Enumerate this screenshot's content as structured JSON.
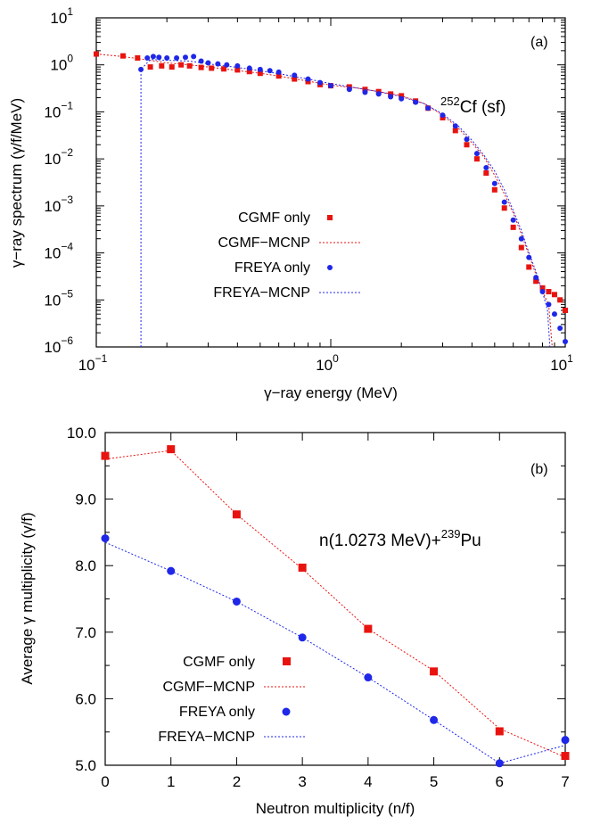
{
  "chart_data": [
    {
      "type": "scatter",
      "panel_label": "(a)",
      "annotation": "Cf (sf)",
      "annotation_sup": "252",
      "xlabel": "γ−ray energy (MeV)",
      "ylabel": "γ−ray spectrum (γ/f/MeV)",
      "xscale": "log",
      "yscale": "log",
      "xlim": [
        0.1,
        10
      ],
      "ylim": [
        1e-06,
        10
      ],
      "xticks": [
        {
          "base": "10",
          "exp": "−1",
          "value": 0.1
        },
        {
          "base": "10",
          "exp": "0",
          "value": 1
        },
        {
          "base": "10",
          "exp": "1",
          "value": 10
        }
      ],
      "yticks": [
        {
          "base": "10",
          "exp": "−6",
          "value": 1e-06
        },
        {
          "base": "10",
          "exp": "−5",
          "value": 1e-05
        },
        {
          "base": "10",
          "exp": "−4",
          "value": 0.0001
        },
        {
          "base": "10",
          "exp": "−3",
          "value": 0.001
        },
        {
          "base": "10",
          "exp": "−2",
          "value": 0.01
        },
        {
          "base": "10",
          "exp": "−1",
          "value": 0.1
        },
        {
          "base": "10",
          "exp": "0",
          "value": 1
        },
        {
          "base": "10",
          "exp": "1",
          "value": 10
        }
      ],
      "legend": {
        "position": "left-center"
      },
      "series": [
        {
          "name": "CGMF only",
          "style": "square-markers",
          "color": "#e8130f",
          "x": [
            0.1,
            0.13,
            0.15,
            0.17,
            0.19,
            0.21,
            0.23,
            0.25,
            0.28,
            0.31,
            0.35,
            0.4,
            0.45,
            0.5,
            0.6,
            0.7,
            0.8,
            0.9,
            1.0,
            1.2,
            1.4,
            1.6,
            1.8,
            2.0,
            2.3,
            2.6,
            3.0,
            3.4,
            3.8,
            4.2,
            4.6,
            5.0,
            5.5,
            6.0,
            6.5,
            7.0,
            7.5,
            8.0,
            8.5,
            9.0,
            9.5,
            10.0
          ],
          "y": [
            1.7,
            1.55,
            1.4,
            0.9,
            0.95,
            0.9,
            1.0,
            0.95,
            0.88,
            0.85,
            0.82,
            0.78,
            0.72,
            0.66,
            0.58,
            0.5,
            0.44,
            0.38,
            0.36,
            0.34,
            0.3,
            0.27,
            0.24,
            0.22,
            0.17,
            0.12,
            0.075,
            0.04,
            0.02,
            0.01,
            0.005,
            0.0022,
            0.0009,
            0.00035,
            0.00013,
            5e-05,
            2.5e-05,
            1.8e-05,
            1.5e-05,
            1.3e-05,
            1e-05,
            6e-06
          ]
        },
        {
          "name": "CGMF−MCNP",
          "style": "dotted-line",
          "color": "#e8130f",
          "x": [
            0.1,
            0.13,
            0.16,
            0.2,
            0.25,
            0.3,
            0.4,
            0.5,
            0.6,
            0.8,
            1.0,
            1.3,
            1.6,
            2.0,
            2.5,
            3.0,
            3.5,
            4.0,
            4.5,
            5.0,
            5.5,
            6.0,
            6.5,
            7.0,
            7.5,
            8.0,
            8.5,
            8.8
          ],
          "y": [
            1.7,
            1.5,
            1.3,
            1.1,
            1.0,
            0.9,
            0.76,
            0.66,
            0.58,
            0.45,
            0.37,
            0.32,
            0.27,
            0.22,
            0.15,
            0.085,
            0.045,
            0.022,
            0.011,
            0.0045,
            0.0018,
            0.0007,
            0.00025,
            9e-05,
            3.5e-05,
            1.5e-05,
            8e-06,
            1e-06
          ]
        },
        {
          "name": "FREYA only",
          "style": "circle-markers",
          "color": "#1f27e8",
          "x": [
            0.155,
            0.165,
            0.175,
            0.185,
            0.2,
            0.22,
            0.24,
            0.26,
            0.28,
            0.3,
            0.33,
            0.36,
            0.4,
            0.45,
            0.5,
            0.55,
            0.6,
            0.7,
            0.8,
            0.9,
            1.0,
            1.2,
            1.4,
            1.6,
            1.8,
            2.0,
            2.3,
            2.6,
            3.0,
            3.4,
            3.8,
            4.2,
            4.6,
            5.0,
            5.5,
            6.0,
            6.5,
            7.0,
            7.5,
            8.0,
            8.5,
            9.0,
            9.5,
            10.0
          ],
          "y": [
            0.8,
            1.4,
            1.5,
            1.45,
            1.4,
            1.4,
            1.45,
            1.5,
            1.2,
            1.1,
            1.05,
            1.0,
            0.95,
            0.85,
            0.8,
            0.75,
            0.7,
            0.6,
            0.5,
            0.42,
            0.36,
            0.3,
            0.26,
            0.24,
            0.21,
            0.19,
            0.16,
            0.12,
            0.085,
            0.05,
            0.026,
            0.013,
            0.0065,
            0.003,
            0.0012,
            0.0005,
            0.0002,
            8e-05,
            3e-05,
            1.5e-05,
            8e-06,
            5e-06,
            2.5e-06,
            1.3e-06
          ]
        },
        {
          "name": "FREYA−MCNP",
          "style": "dotted-line",
          "color": "#1f27e8",
          "x": [
            0.155,
            0.155,
            0.17,
            0.2,
            0.25,
            0.3,
            0.4,
            0.5,
            0.6,
            0.8,
            1.0,
            1.3,
            1.6,
            2.0,
            2.5,
            3.0,
            3.5,
            4.0,
            4.5,
            5.0,
            5.5,
            6.0,
            6.5,
            7.0,
            7.5,
            8.0,
            8.4,
            8.6
          ],
          "y": [
            1e-06,
            0.8,
            1.3,
            1.25,
            1.2,
            1.05,
            0.88,
            0.75,
            0.65,
            0.5,
            0.4,
            0.32,
            0.27,
            0.21,
            0.15,
            0.09,
            0.05,
            0.025,
            0.012,
            0.0055,
            0.0022,
            0.0008,
            0.0003,
            0.0001,
            4e-05,
            1.5e-05,
            6e-06,
            1e-06
          ]
        }
      ]
    },
    {
      "type": "line",
      "panel_label": "(b)",
      "annotation": "n(1.0273 MeV)+",
      "annotation_sup": "239",
      "annotation_tail": "Pu",
      "xlabel": "Neutron multiplicity (n/f)",
      "ylabel": "Average γ multiplicity (γ/f)",
      "xlim": [
        0,
        7
      ],
      "ylim": [
        5.0,
        10.0
      ],
      "xticks": [
        "0",
        "1",
        "2",
        "3",
        "4",
        "5",
        "6",
        "7"
      ],
      "yticks": [
        "5.0",
        "6.0",
        "7.0",
        "8.0",
        "9.0",
        "10.0"
      ],
      "legend": {
        "position": "bottom-left"
      },
      "series": [
        {
          "name": "CGMF only",
          "style": "square-markers",
          "color": "#e8130f",
          "x": [
            0,
            1,
            2,
            3,
            4,
            5,
            6,
            7
          ],
          "y": [
            9.65,
            9.75,
            8.77,
            7.97,
            7.05,
            6.41,
            5.51,
            5.14
          ]
        },
        {
          "name": "CGMF−MCNP",
          "style": "dotted-line",
          "color": "#e8130f",
          "x": [
            0,
            1,
            2,
            3,
            4,
            5,
            6,
            7
          ],
          "y": [
            9.6,
            9.73,
            8.77,
            7.95,
            7.05,
            6.42,
            5.55,
            5.12
          ]
        },
        {
          "name": "FREYA only",
          "style": "circle-markers",
          "color": "#1f27e8",
          "x": [
            0,
            1,
            2,
            3,
            4,
            5,
            6,
            7
          ],
          "y": [
            8.41,
            7.92,
            7.46,
            6.92,
            6.32,
            5.68,
            5.03,
            5.38
          ]
        },
        {
          "name": "FREYA−MCNP",
          "style": "dotted-line",
          "color": "#1f27e8",
          "x": [
            0,
            1,
            2,
            3,
            4,
            5,
            6,
            7
          ],
          "y": [
            8.35,
            7.92,
            7.46,
            6.92,
            6.32,
            5.68,
            5.03,
            5.3
          ]
        }
      ]
    }
  ]
}
